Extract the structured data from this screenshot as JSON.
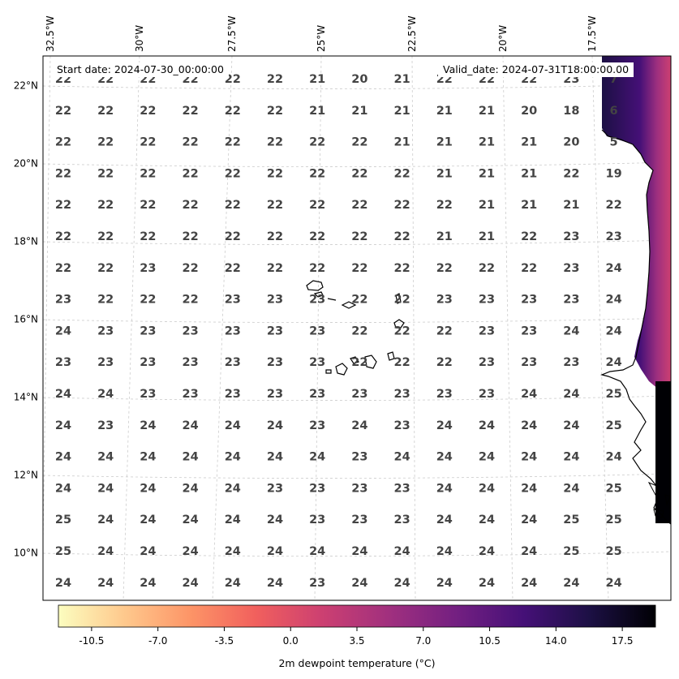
{
  "map": {
    "start_date_text": "Start date: 2024-07-30_00:00:00",
    "valid_date_text": "Valid_date: 2024-07-31T18:00:00.00",
    "lon_labels": [
      "32.5°W",
      "30°W",
      "27.5°W",
      "25°W",
      "22.5°W",
      "20°W",
      "17.5°W"
    ],
    "lat_labels": [
      "22°N",
      "20°N",
      "18°N",
      "16°N",
      "14°N",
      "12°N",
      "10°N"
    ],
    "grid_values": [
      [
        "22",
        "22",
        "22",
        "22",
        "22",
        "22",
        "21",
        "20",
        "21",
        "22",
        "22",
        "22",
        "23",
        "7"
      ],
      [
        "22",
        "22",
        "22",
        "22",
        "22",
        "22",
        "21",
        "21",
        "21",
        "21",
        "21",
        "20",
        "18",
        "6"
      ],
      [
        "22",
        "22",
        "22",
        "22",
        "22",
        "22",
        "22",
        "22",
        "21",
        "21",
        "21",
        "21",
        "20",
        "5"
      ],
      [
        "22",
        "22",
        "22",
        "22",
        "22",
        "22",
        "22",
        "22",
        "22",
        "21",
        "21",
        "21",
        "22",
        "19"
      ],
      [
        "22",
        "22",
        "22",
        "22",
        "22",
        "22",
        "22",
        "22",
        "22",
        "22",
        "21",
        "21",
        "21",
        "22"
      ],
      [
        "22",
        "22",
        "22",
        "22",
        "22",
        "22",
        "22",
        "22",
        "22",
        "21",
        "21",
        "22",
        "23",
        "23"
      ],
      [
        "22",
        "22",
        "23",
        "22",
        "22",
        "22",
        "22",
        "22",
        "22",
        "22",
        "22",
        "22",
        "23",
        "24"
      ],
      [
        "23",
        "22",
        "22",
        "22",
        "23",
        "23",
        "23",
        "22",
        "22",
        "23",
        "23",
        "23",
        "23",
        "24"
      ],
      [
        "24",
        "23",
        "23",
        "23",
        "23",
        "23",
        "23",
        "22",
        "22",
        "22",
        "23",
        "23",
        "24",
        "24"
      ],
      [
        "23",
        "23",
        "23",
        "23",
        "23",
        "23",
        "23",
        "22",
        "22",
        "22",
        "23",
        "23",
        "23",
        "24"
      ],
      [
        "24",
        "24",
        "23",
        "23",
        "23",
        "23",
        "23",
        "23",
        "23",
        "23",
        "23",
        "24",
        "24",
        "25"
      ],
      [
        "24",
        "23",
        "24",
        "24",
        "24",
        "24",
        "23",
        "24",
        "23",
        "24",
        "24",
        "24",
        "24",
        "25"
      ],
      [
        "24",
        "24",
        "24",
        "24",
        "24",
        "24",
        "24",
        "23",
        "24",
        "24",
        "24",
        "24",
        "24",
        "24"
      ],
      [
        "24",
        "24",
        "24",
        "24",
        "24",
        "23",
        "23",
        "23",
        "23",
        "24",
        "24",
        "24",
        "24",
        "25"
      ],
      [
        "25",
        "24",
        "24",
        "24",
        "24",
        "24",
        "23",
        "23",
        "23",
        "24",
        "24",
        "24",
        "25",
        "25"
      ],
      [
        "25",
        "24",
        "24",
        "24",
        "24",
        "24",
        "24",
        "24",
        "24",
        "24",
        "24",
        "24",
        "25",
        "25"
      ],
      [
        "24",
        "24",
        "24",
        "24",
        "24",
        "24",
        "23",
        "24",
        "24",
        "24",
        "24",
        "24",
        "24",
        "24"
      ]
    ]
  },
  "colorbar": {
    "title": "2m dewpoint temperature (°C)",
    "ticks": [
      "-10.5",
      "-7.0",
      "-3.5",
      "0.0",
      "3.5",
      "7.0",
      "10.5",
      "14.0",
      "17.5"
    ],
    "tick_values": [
      -10.5,
      -7.0,
      -3.5,
      0.0,
      3.5,
      7.0,
      10.5,
      14.0,
      17.5
    ],
    "range": [
      -12.25,
      19.25
    ],
    "colors": [
      "#fcfdbf",
      "#fec98d",
      "#fd9567",
      "#f1605d",
      "#cd4071",
      "#9e2f7f",
      "#721f81",
      "#451077",
      "#1c1044",
      "#000004"
    ]
  }
}
